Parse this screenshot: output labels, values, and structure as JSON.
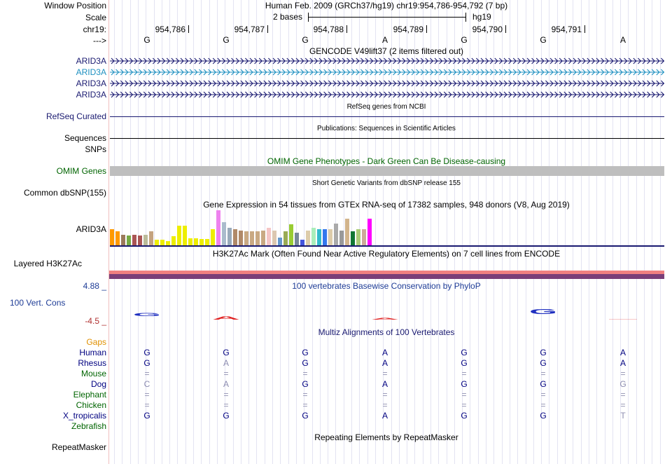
{
  "ruler": {
    "window_position_label": "Window Position",
    "scale_label": "Scale",
    "chrom_label": "chr19:",
    "strand_label": "--->",
    "assembly_text": "Human Feb. 2009 (GRCh37/hg19)   chr19:954,786-954,792 (7 bp)",
    "scale_text": "2 bases",
    "scale_assembly": "hg19",
    "positions": [
      "954,786",
      "954,787",
      "954,788",
      "954,789",
      "954,790",
      "954,791"
    ],
    "bases": [
      "G",
      "G",
      "G",
      "A",
      "G",
      "G",
      "A"
    ]
  },
  "tracks": {
    "gencode": {
      "title": "GENCODE V49lift37 (2 items filtered out)",
      "genes": [
        {
          "label": "ARID3A",
          "color": "#191970"
        },
        {
          "label": "ARID3A",
          "color": "#1e90c0"
        },
        {
          "label": "ARID3A",
          "color": "#191970"
        },
        {
          "label": "ARID3A",
          "color": "#191970"
        }
      ]
    },
    "refseq": {
      "title": "RefSeq genes from NCBI",
      "label": "RefSeq Curated"
    },
    "publications": {
      "title": "Publications: Sequences in Scientific Articles",
      "label": "Sequences"
    },
    "snps_label": "SNPs",
    "omim": {
      "title": "OMIM Gene Phenotypes - Dark Green Can Be Disease-causing",
      "label": "OMIM Genes",
      "title_color": "#006400"
    },
    "dbsnp": {
      "title": "Short Genetic Variants from dbSNP release 155",
      "label": "Common dbSNP(155)"
    },
    "gtex": {
      "title": "Gene Expression in 54 tissues from GTEx RNA-seq of 17382 samples, 948 donors (V8, Aug 2019)",
      "label": "ARID3A",
      "bars": [
        {
          "value": 0.45,
          "color": "#ff9900"
        },
        {
          "value": 0.4,
          "color": "#ff9900"
        },
        {
          "value": 0.3,
          "color": "#9b7a5b"
        },
        {
          "value": 0.28,
          "color": "#77aa44"
        },
        {
          "value": 0.3,
          "color": "#aa5555"
        },
        {
          "value": 0.28,
          "color": "#aa5555"
        },
        {
          "value": 0.3,
          "color": "#bbbb99"
        },
        {
          "value": 0.4,
          "color": "#c4a37f"
        },
        {
          "value": 0.15,
          "color": "#eeee00"
        },
        {
          "value": 0.15,
          "color": "#eeee00"
        },
        {
          "value": 0.12,
          "color": "#eeee00"
        },
        {
          "value": 0.25,
          "color": "#eeee00"
        },
        {
          "value": 0.55,
          "color": "#eeee00"
        },
        {
          "value": 0.55,
          "color": "#eeee00"
        },
        {
          "value": 0.2,
          "color": "#eeee00"
        },
        {
          "value": 0.2,
          "color": "#eeee00"
        },
        {
          "value": 0.18,
          "color": "#eeee00"
        },
        {
          "value": 0.18,
          "color": "#eeee00"
        },
        {
          "value": 0.45,
          "color": "#eeee00"
        },
        {
          "value": 1.0,
          "color": "#ee82ee"
        },
        {
          "value": 0.65,
          "color": "#aabbcc"
        },
        {
          "value": 0.5,
          "color": "#99aabb"
        },
        {
          "value": 0.45,
          "color": "#b08968"
        },
        {
          "value": 0.42,
          "color": "#b08968"
        },
        {
          "value": 0.4,
          "color": "#c9a983"
        },
        {
          "value": 0.4,
          "color": "#c9a983"
        },
        {
          "value": 0.4,
          "color": "#c9a983"
        },
        {
          "value": 0.42,
          "color": "#c9a983"
        },
        {
          "value": 0.5,
          "color": "#f5c6c6"
        },
        {
          "value": 0.42,
          "color": "#dcc7b0"
        },
        {
          "value": 0.22,
          "color": "#6699cc"
        },
        {
          "value": 0.4,
          "color": "#99aa55"
        },
        {
          "value": 0.6,
          "color": "#99cc33"
        },
        {
          "value": 0.35,
          "color": "#778899"
        },
        {
          "value": 0.15,
          "color": "#4455dd"
        },
        {
          "value": 0.42,
          "color": "#ddccaa"
        },
        {
          "value": 0.5,
          "color": "#aaeebb"
        },
        {
          "value": 0.45,
          "color": "#33bbcc"
        },
        {
          "value": 0.45,
          "color": "#3377ee"
        },
        {
          "value": 0.45,
          "color": "#ddccaa"
        },
        {
          "value": 0.62,
          "color": "#aaaaaa"
        },
        {
          "value": 0.42,
          "color": "#999999"
        },
        {
          "value": 0.75,
          "color": "#d2b48c"
        },
        {
          "value": 0.4,
          "color": "#117733"
        },
        {
          "value": 0.45,
          "color": "#aacc77"
        },
        {
          "value": 0.45,
          "color": "#ccaa99"
        },
        {
          "value": 0.75,
          "color": "#ff00ff"
        }
      ]
    },
    "h3k27ac": {
      "title": "H3K27Ac Mark (Often Found Near Active Regulatory Elements) on 7 cell lines from ENCODE",
      "label": "Layered H3K27Ac"
    },
    "phylop": {
      "title": "100 vertebrates Basewise Conservation by PhyloP",
      "label": "100 Vert. Cons",
      "max_label": "4.88 _",
      "min_label": "-4.5 _",
      "max_color": "#1e3c96",
      "min_color": "#b03030",
      "scores": [
        {
          "base": "G",
          "value": 1.2
        },
        {
          "base": "A",
          "value": -1.3
        },
        null,
        {
          "base": "A",
          "value": -0.8
        },
        null,
        {
          "base": "G",
          "value": 2.0
        },
        {
          "base": "-",
          "value": -0.3
        }
      ]
    },
    "multiz": {
      "title": "Multiz Alignments of 100 Vertebrates",
      "gaps_label": "Gaps",
      "species": [
        {
          "name": "Human",
          "color": "#000080",
          "bases": [
            "G",
            "G",
            "G",
            "A",
            "G",
            "G",
            "A"
          ]
        },
        {
          "name": "Rhesus",
          "color": "#000080",
          "bases": [
            "G",
            "A",
            "G",
            "A",
            "G",
            "G",
            "A"
          ],
          "faded": [
            false,
            true,
            false,
            false,
            false,
            false,
            false
          ]
        },
        {
          "name": "Mouse",
          "color": "#006400",
          "bases": [
            "=",
            "=",
            "=",
            "=",
            "=",
            "=",
            "="
          ]
        },
        {
          "name": "Dog",
          "color": "#000080",
          "bases": [
            "C",
            "A",
            "G",
            "A",
            "G",
            "G",
            "G"
          ],
          "faded": [
            true,
            true,
            false,
            false,
            false,
            false,
            true
          ]
        },
        {
          "name": "Elephant",
          "color": "#006400",
          "bases": [
            "=",
            "=",
            "=",
            "=",
            "=",
            "=",
            "="
          ]
        },
        {
          "name": "Chicken",
          "color": "#006400",
          "bases": [
            "=",
            "=",
            "=",
            "=",
            "=",
            "=",
            "="
          ]
        },
        {
          "name": "X_tropicalis",
          "color": "#000080",
          "bases": [
            "G",
            "G",
            "G",
            "A",
            "G",
            "G",
            "T"
          ],
          "faded": [
            false,
            false,
            false,
            false,
            false,
            false,
            true
          ]
        },
        {
          "name": "Zebrafish",
          "color": "#006400",
          "bases": [
            "",
            "",
            "",
            "",
            "",
            "",
            ""
          ]
        }
      ]
    },
    "repeatmasker": {
      "title": "Repeating Elements by RepeatMasker",
      "label": "RepeatMasker"
    }
  }
}
